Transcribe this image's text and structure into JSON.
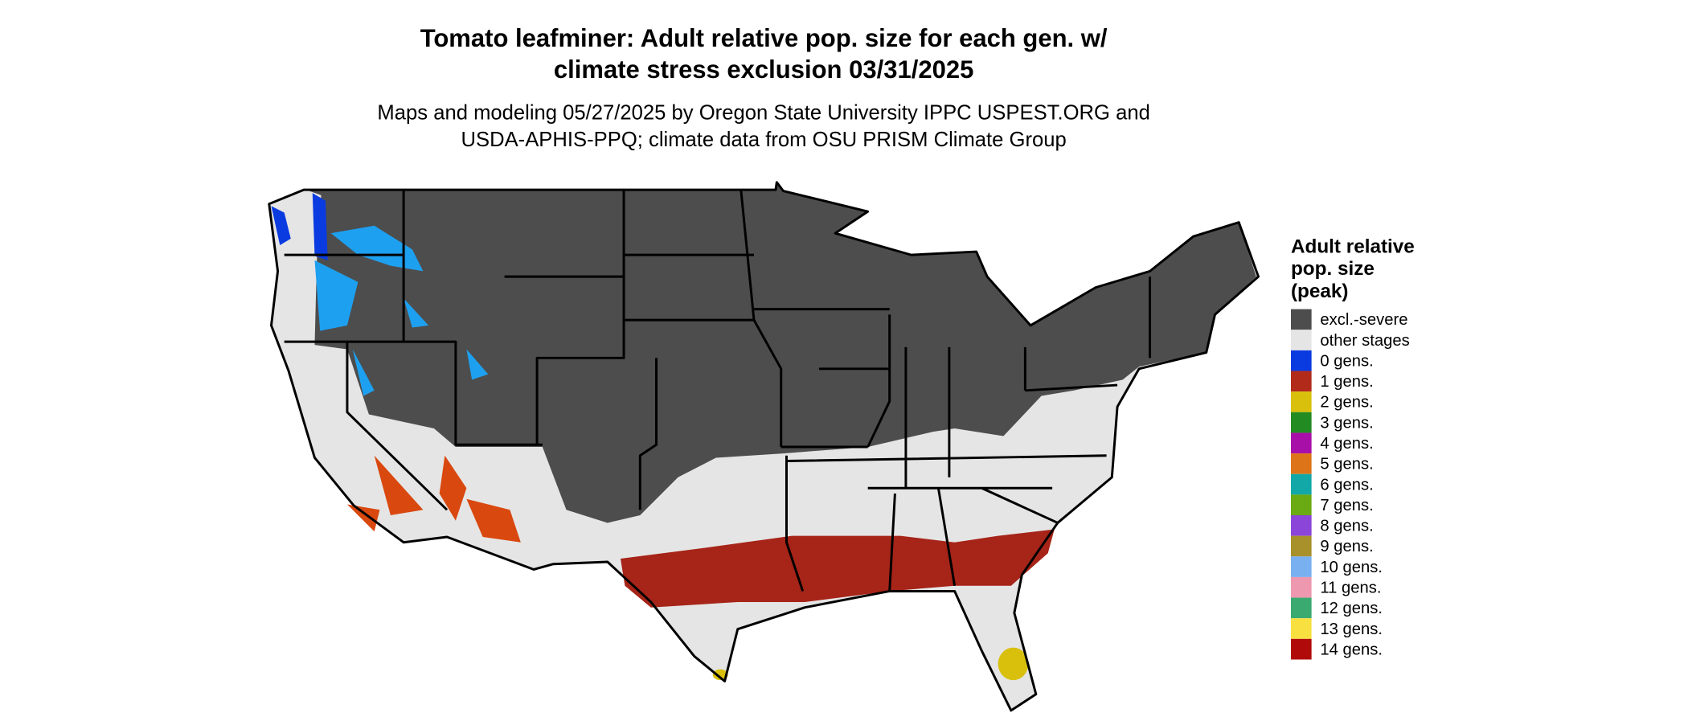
{
  "title": [
    "Tomato leafminer: Adult relative pop. size for each gen. w/",
    "climate stress exclusion 03/31/2025"
  ],
  "subtitle": [
    "Maps and modeling 05/27/2025 by Oregon State University IPPC USPEST.ORG and",
    "USDA-APHIS-PPQ; climate data from OSU PRISM Climate Group"
  ],
  "legend": {
    "title": [
      "Adult relative",
      "pop. size",
      "(peak)"
    ],
    "items": [
      {
        "label": "excl.-severe",
        "color": "#4d4d4d"
      },
      {
        "label": "other stages",
        "color": "#e5e5e5"
      },
      {
        "label": "0 gens.",
        "color": "#0a3be0"
      },
      {
        "label": "1 gens.",
        "color": "#b22a1a"
      },
      {
        "label": "2 gens.",
        "color": "#d8c00c"
      },
      {
        "label": "3 gens.",
        "color": "#228b22"
      },
      {
        "label": "4 gens.",
        "color": "#a80fa8"
      },
      {
        "label": "5 gens.",
        "color": "#dd7518"
      },
      {
        "label": "6 gens.",
        "color": "#12a8a8"
      },
      {
        "label": "7 gens.",
        "color": "#6aaa12"
      },
      {
        "label": "8 gens.",
        "color": "#8b45d8"
      },
      {
        "label": "9 gens.",
        "color": "#a8902a"
      },
      {
        "label": "10 gens.",
        "color": "#78b0f0"
      },
      {
        "label": "11 gens.",
        "color": "#ee98b0"
      },
      {
        "label": "12 gens.",
        "color": "#3aaa70"
      },
      {
        "label": "13 gens.",
        "color": "#f8e040"
      },
      {
        "label": "14 gens.",
        "color": "#b00a0a"
      }
    ]
  }
}
